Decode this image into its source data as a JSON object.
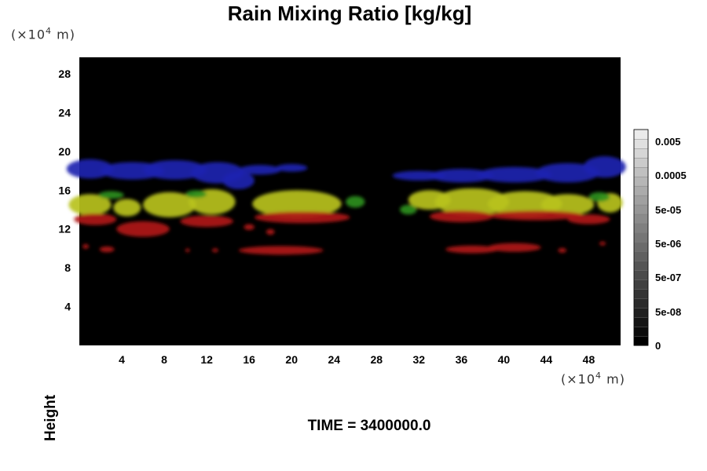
{
  "chart_data": {
    "type": "heatmap",
    "title": "Rain Mixing Ratio [kg/kg]",
    "ylabel": "Height",
    "xlabel": "",
    "x_unit_prefix": "(×10",
    "x_unit_exp": "4",
    "x_unit_suffix": " m)",
    "y_unit_prefix": "(×10",
    "y_unit_exp": "4",
    "y_unit_suffix": " m)",
    "xlim": [
      0,
      51
    ],
    "ylim": [
      0,
      29.7
    ],
    "x_ticks": [
      4,
      8,
      12,
      16,
      20,
      24,
      28,
      32,
      36,
      40,
      44,
      48
    ],
    "y_ticks": [
      4,
      8,
      12,
      16,
      20,
      24,
      28
    ],
    "colorbar": {
      "tick_labels": [
        "0.005",
        "0.0005",
        "5e-05",
        "5e-06",
        "5e-07",
        "5e-08",
        "0"
      ],
      "n_levels": 23
    },
    "regions": [
      {
        "name": "",
        "color": "#1c22b0",
        "blobs": [
          {
            "x": 1,
            "y": 18.2,
            "rx": 2.2,
            "ry": 1.0
          },
          {
            "x": 5,
            "y": 18.0,
            "rx": 3.0,
            "ry": 0.9
          },
          {
            "x": 9,
            "y": 18.1,
            "rx": 3.0,
            "ry": 1.0
          },
          {
            "x": 13,
            "y": 17.8,
            "rx": 2.5,
            "ry": 1.1
          },
          {
            "x": 15,
            "y": 17.0,
            "rx": 1.5,
            "ry": 0.9
          },
          {
            "x": 17,
            "y": 18.1,
            "rx": 2.0,
            "ry": 0.5
          },
          {
            "x": 20,
            "y": 18.3,
            "rx": 1.5,
            "ry": 0.4
          },
          {
            "x": 32,
            "y": 17.5,
            "rx": 2.5,
            "ry": 0.5
          },
          {
            "x": 36,
            "y": 17.5,
            "rx": 3.0,
            "ry": 0.7
          },
          {
            "x": 41,
            "y": 17.6,
            "rx": 3.5,
            "ry": 0.8
          },
          {
            "x": 46,
            "y": 17.8,
            "rx": 3.0,
            "ry": 1.0
          },
          {
            "x": 49.5,
            "y": 18.4,
            "rx": 2.0,
            "ry": 1.1
          }
        ]
      },
      {
        "name": "",
        "color": "#b8c21c",
        "blobs": [
          {
            "x": 1,
            "y": 14.5,
            "rx": 2.0,
            "ry": 1.1
          },
          {
            "x": 4.5,
            "y": 14.2,
            "rx": 1.3,
            "ry": 0.9
          },
          {
            "x": 8.5,
            "y": 14.5,
            "rx": 2.5,
            "ry": 1.3
          },
          {
            "x": 12.5,
            "y": 14.8,
            "rx": 2.2,
            "ry": 1.3
          },
          {
            "x": 20.5,
            "y": 14.6,
            "rx": 4.2,
            "ry": 1.4
          },
          {
            "x": 33,
            "y": 15.0,
            "rx": 2.0,
            "ry": 1.0
          },
          {
            "x": 37,
            "y": 14.8,
            "rx": 3.5,
            "ry": 1.4
          },
          {
            "x": 42,
            "y": 14.6,
            "rx": 3.5,
            "ry": 1.3
          },
          {
            "x": 46,
            "y": 14.5,
            "rx": 2.5,
            "ry": 1.1
          },
          {
            "x": 50,
            "y": 14.7,
            "rx": 1.2,
            "ry": 1.0
          }
        ]
      },
      {
        "name": "",
        "color": "#2e8f1c",
        "blobs": [
          {
            "x": 3,
            "y": 15.5,
            "rx": 1.2,
            "ry": 0.4
          },
          {
            "x": 11,
            "y": 15.6,
            "rx": 1.0,
            "ry": 0.4
          },
          {
            "x": 26,
            "y": 14.8,
            "rx": 0.9,
            "ry": 0.6
          },
          {
            "x": 31,
            "y": 14.0,
            "rx": 0.8,
            "ry": 0.5
          },
          {
            "x": 49,
            "y": 15.3,
            "rx": 1.0,
            "ry": 0.5
          }
        ]
      },
      {
        "name": "",
        "color": "#b01a14",
        "blobs": [
          {
            "x": 1.5,
            "y": 13.0,
            "rx": 2.0,
            "ry": 0.6
          },
          {
            "x": 6,
            "y": 12.0,
            "rx": 2.5,
            "ry": 0.8
          },
          {
            "x": 12,
            "y": 12.8,
            "rx": 2.5,
            "ry": 0.6
          },
          {
            "x": 21,
            "y": 13.2,
            "rx": 4.5,
            "ry": 0.6
          },
          {
            "x": 18,
            "y": 11.7,
            "rx": 0.4,
            "ry": 0.3
          },
          {
            "x": 16,
            "y": 12.2,
            "rx": 0.5,
            "ry": 0.3
          },
          {
            "x": 36,
            "y": 13.3,
            "rx": 3.0,
            "ry": 0.6
          },
          {
            "x": 43,
            "y": 13.4,
            "rx": 4.5,
            "ry": 0.5
          },
          {
            "x": 48,
            "y": 13.0,
            "rx": 2.0,
            "ry": 0.5
          },
          {
            "x": 19,
            "y": 9.8,
            "rx": 4.0,
            "ry": 0.45
          },
          {
            "x": 37,
            "y": 9.9,
            "rx": 2.5,
            "ry": 0.4
          },
          {
            "x": 41,
            "y": 10.1,
            "rx": 2.5,
            "ry": 0.45
          },
          {
            "x": 0.6,
            "y": 10.2,
            "rx": 0.3,
            "ry": 0.25
          },
          {
            "x": 2.6,
            "y": 9.9,
            "rx": 0.7,
            "ry": 0.3
          },
          {
            "x": 10.2,
            "y": 9.8,
            "rx": 0.2,
            "ry": 0.2
          },
          {
            "x": 12.8,
            "y": 9.8,
            "rx": 0.3,
            "ry": 0.2
          },
          {
            "x": 45.5,
            "y": 9.8,
            "rx": 0.4,
            "ry": 0.25
          },
          {
            "x": 49.3,
            "y": 10.5,
            "rx": 0.3,
            "ry": 0.2
          }
        ]
      }
    ]
  },
  "footer": {
    "time_label": "TIME = 3400000.0"
  }
}
